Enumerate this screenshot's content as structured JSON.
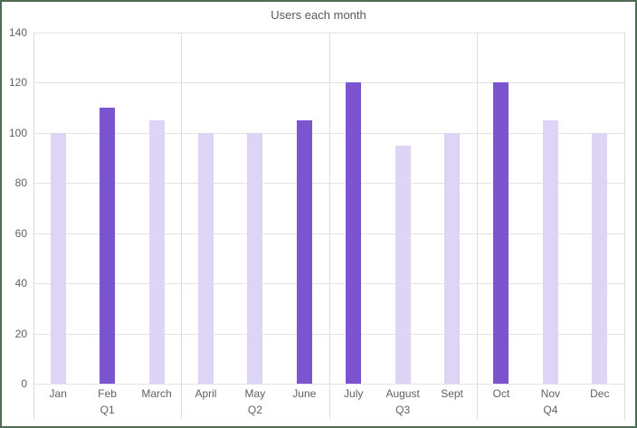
{
  "chart_data": {
    "type": "bar",
    "title": "Users each month",
    "categories": [
      "Jan",
      "Feb",
      "March",
      "April",
      "May",
      "June",
      "July",
      "August",
      "Sept",
      "Oct",
      "Nov",
      "Dec"
    ],
    "values": [
      100,
      110,
      105,
      100,
      100,
      105,
      120,
      95,
      100,
      120,
      105,
      100
    ],
    "highlighted_months": [
      "Feb",
      "June",
      "July",
      "Oct"
    ],
    "quarters": [
      "Q1",
      "Q2",
      "Q3",
      "Q4"
    ],
    "months_per_quarter": 3,
    "xlabel": "",
    "ylabel": "",
    "ylim": [
      0,
      140
    ],
    "y_ticks": [
      0,
      20,
      40,
      60,
      80,
      100,
      120,
      140
    ],
    "grid": "horizontal gridlines on, vertical separators at quarter boundaries",
    "legend": "none"
  },
  "colors": {
    "bar_default": "#ded4f6",
    "bar_highlight": "#7b55d0",
    "gridline": "#e3e3e3",
    "axis_line": "#dcdcdc",
    "label_text": "#616161",
    "title_text": "#595959",
    "frame_border": "#4f6b54",
    "background": "#ffffff"
  }
}
